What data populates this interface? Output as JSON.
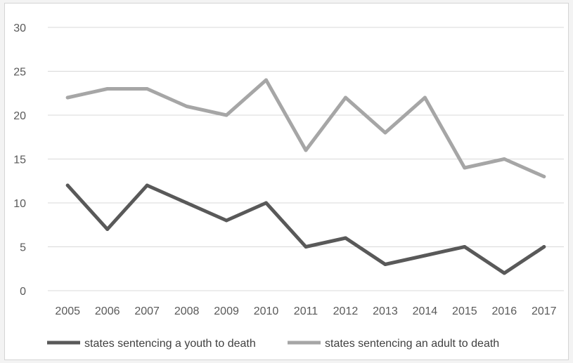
{
  "chart_data": {
    "type": "line",
    "title": "",
    "xlabel": "",
    "ylabel": "",
    "categories": [
      "2005",
      "2006",
      "2007",
      "2008",
      "2009",
      "2010",
      "2011",
      "2012",
      "2013",
      "2014",
      "2015",
      "2016",
      "2017"
    ],
    "ylim": [
      0,
      30
    ],
    "yticks": [
      "0",
      "5",
      "10",
      "15",
      "20",
      "25",
      "30"
    ],
    "grid": true,
    "legend_position": "bottom",
    "series": [
      {
        "name": "states sentencing a youth to death",
        "color": "#595959",
        "values": [
          12,
          7,
          12,
          10,
          8,
          10,
          5,
          6,
          3,
          4,
          5,
          2,
          5
        ]
      },
      {
        "name": "states sentencing an adult to death",
        "color": "#a6a6a6",
        "values": [
          22,
          23,
          23,
          21,
          20,
          24,
          16,
          22,
          18,
          22,
          14,
          15,
          13
        ]
      }
    ]
  }
}
